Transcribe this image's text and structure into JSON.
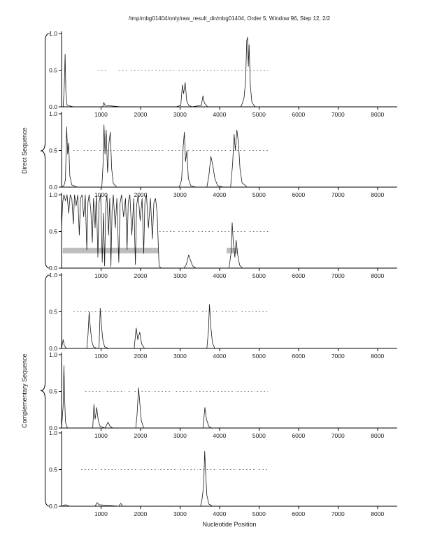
{
  "chart_data": {
    "type": "line",
    "title": "/tmp/mbg01404/only/raw_result_dir/mbg01404, Order 5, Window 96, Step 12, 2/2",
    "xlabel": "Nucleotide Position",
    "group_labels": {
      "direct": "Direct Sequence",
      "complementary": "Complementary Sequence"
    },
    "xlim": [
      0,
      8500
    ],
    "ylim": [
      0,
      1
    ],
    "x_ticks": [
      1000,
      2000,
      3000,
      4000,
      5000,
      6000,
      7000,
      8000
    ],
    "y_ticks": [
      0,
      0.5,
      1
    ],
    "colors": {
      "curve": "#1a1a1a",
      "marker": "#6e6e6e",
      "shade": "#bdbdbd",
      "axis": "#000000"
    },
    "panels": [
      {
        "group": "Direct Sequence",
        "frame": 1,
        "curve": [
          [
            0,
            0
          ],
          [
            40,
            0
          ],
          [
            70,
            0.3
          ],
          [
            90,
            0.72
          ],
          [
            110,
            0.2
          ],
          [
            140,
            0.02
          ],
          [
            300,
            0
          ],
          [
            1040,
            0
          ],
          [
            1070,
            0.06
          ],
          [
            1100,
            0.02
          ],
          [
            1500,
            0
          ],
          [
            2900,
            0
          ],
          [
            3020,
            0.02
          ],
          [
            3060,
            0.3
          ],
          [
            3090,
            0.18
          ],
          [
            3130,
            0.33
          ],
          [
            3170,
            0.08
          ],
          [
            3220,
            0.02
          ],
          [
            3300,
            0
          ],
          [
            3540,
            0.02
          ],
          [
            3580,
            0.15
          ],
          [
            3620,
            0.05
          ],
          [
            3700,
            0
          ],
          [
            4540,
            0
          ],
          [
            4580,
            0.05
          ],
          [
            4620,
            0.12
          ],
          [
            4660,
            0.35
          ],
          [
            4690,
            0.9
          ],
          [
            4710,
            0.95
          ],
          [
            4730,
            0.55
          ],
          [
            4750,
            0.85
          ],
          [
            4780,
            0.3
          ],
          [
            4820,
            0.06
          ],
          [
            4900,
            0
          ],
          [
            8500,
            0
          ]
        ],
        "orf_markers": [
          [
            920,
            1140
          ],
          [
            1450,
            1700
          ],
          [
            1750,
            2320
          ],
          [
            2380,
            2900
          ],
          [
            2960,
            3530
          ],
          [
            3590,
            3980
          ],
          [
            4040,
            4320
          ],
          [
            4380,
            4620
          ],
          [
            4680,
            5230
          ]
        ],
        "shade_bars": []
      },
      {
        "group": "Direct Sequence",
        "frame": 2,
        "curve": [
          [
            0,
            0
          ],
          [
            60,
            0.02
          ],
          [
            100,
            0.1
          ],
          [
            130,
            0.82
          ],
          [
            155,
            0.45
          ],
          [
            180,
            0.6
          ],
          [
            210,
            0.15
          ],
          [
            260,
            0.03
          ],
          [
            400,
            0
          ],
          [
            1020,
            0
          ],
          [
            1050,
            0.3
          ],
          [
            1075,
            0.85
          ],
          [
            1100,
            0.45
          ],
          [
            1130,
            0.78
          ],
          [
            1165,
            0.2
          ],
          [
            1200,
            0.6
          ],
          [
            1235,
            0.75
          ],
          [
            1270,
            0.25
          ],
          [
            1310,
            0.05
          ],
          [
            1400,
            0
          ],
          [
            2980,
            0
          ],
          [
            3040,
            0.1
          ],
          [
            3080,
            0.55
          ],
          [
            3110,
            0.75
          ],
          [
            3140,
            0.35
          ],
          [
            3175,
            0.5
          ],
          [
            3210,
            0.12
          ],
          [
            3270,
            0.02
          ],
          [
            3400,
            0
          ],
          [
            3680,
            0
          ],
          [
            3730,
            0.15
          ],
          [
            3780,
            0.42
          ],
          [
            3830,
            0.3
          ],
          [
            3880,
            0.12
          ],
          [
            3950,
            0.02
          ],
          [
            4100,
            0
          ],
          [
            4280,
            0
          ],
          [
            4330,
            0.3
          ],
          [
            4370,
            0.72
          ],
          [
            4400,
            0.5
          ],
          [
            4440,
            0.78
          ],
          [
            4480,
            0.6
          ],
          [
            4520,
            0.25
          ],
          [
            4570,
            0.06
          ],
          [
            4700,
            0
          ],
          [
            8500,
            0
          ]
        ],
        "orf_markers": [
          [
            300,
            420
          ],
          [
            560,
            900
          ],
          [
            960,
            1450
          ],
          [
            1500,
            2050
          ],
          [
            2100,
            2600
          ],
          [
            2700,
            3100
          ],
          [
            3200,
            3260
          ],
          [
            3320,
            3700
          ],
          [
            3780,
            4200
          ],
          [
            4260,
            4700
          ],
          [
            4750,
            5230
          ]
        ],
        "shade_bars": []
      },
      {
        "group": "Direct Sequence",
        "frame": 3,
        "curve": [
          [
            0,
            0.55
          ],
          [
            30,
            0.9
          ],
          [
            60,
            1
          ],
          [
            100,
            0.92
          ],
          [
            140,
            1
          ],
          [
            180,
            0.75
          ],
          [
            220,
            1
          ],
          [
            260,
            0.95
          ],
          [
            300,
            0.6
          ],
          [
            330,
            1
          ],
          [
            370,
            0.85
          ],
          [
            410,
            1
          ],
          [
            450,
            0.45
          ],
          [
            480,
            0.95
          ],
          [
            520,
            1
          ],
          [
            560,
            0.7
          ],
          [
            600,
            1
          ],
          [
            640,
            0.25
          ],
          [
            670,
            0.9
          ],
          [
            700,
            1
          ],
          [
            740,
            0.8
          ],
          [
            780,
            0.35
          ],
          [
            810,
            0.95
          ],
          [
            850,
            0.55
          ],
          [
            880,
            1
          ],
          [
            920,
            0.15
          ],
          [
            950,
            0.9
          ],
          [
            990,
            1
          ],
          [
            1030,
            0.08
          ],
          [
            1060,
            0.75
          ],
          [
            1090,
            0.03
          ],
          [
            1120,
            0.85
          ],
          [
            1150,
            1
          ],
          [
            1190,
            0.45
          ],
          [
            1220,
            0.95
          ],
          [
            1250,
            0.02
          ],
          [
            1280,
            0.8
          ],
          [
            1310,
            1
          ],
          [
            1360,
            0.55
          ],
          [
            1400,
            0.95
          ],
          [
            1450,
            0.08
          ],
          [
            1480,
            0.88
          ],
          [
            1520,
            1
          ],
          [
            1570,
            0.7
          ],
          [
            1620,
            0.95
          ],
          [
            1660,
            0.25
          ],
          [
            1690,
            0.9
          ],
          [
            1730,
            1
          ],
          [
            1780,
            0.45
          ],
          [
            1830,
            0.95
          ],
          [
            1870,
            0.05
          ],
          [
            1900,
            0.85
          ],
          [
            1940,
            1
          ],
          [
            1990,
            0.65
          ],
          [
            2040,
            0.95
          ],
          [
            2080,
            0.2
          ],
          [
            2110,
            0.9
          ],
          [
            2150,
            1
          ],
          [
            2200,
            0.55
          ],
          [
            2250,
            0.95
          ],
          [
            2300,
            0.4
          ],
          [
            2340,
            0.9
          ],
          [
            2380,
            0.95
          ],
          [
            2420,
            0.75
          ],
          [
            2450,
            0.3
          ],
          [
            2470,
            0.03
          ],
          [
            2520,
            0
          ],
          [
            3100,
            0
          ],
          [
            3160,
            0.05
          ],
          [
            3220,
            0.18
          ],
          [
            3270,
            0.1
          ],
          [
            3320,
            0.03
          ],
          [
            3400,
            0
          ],
          [
            4240,
            0
          ],
          [
            4290,
            0.2
          ],
          [
            4320,
            0.62
          ],
          [
            4350,
            0.35
          ],
          [
            4390,
            0.15
          ],
          [
            4420,
            0.38
          ],
          [
            4460,
            0.18
          ],
          [
            4510,
            0.04
          ],
          [
            4580,
            0
          ],
          [
            8500,
            0
          ]
        ],
        "orf_markers": [
          [
            2480,
            2900
          ],
          [
            2960,
            3400
          ],
          [
            3460,
            3900
          ],
          [
            3950,
            4300
          ],
          [
            4360,
            4700
          ],
          [
            4760,
            5230
          ]
        ],
        "shade_bars": [
          {
            "x1": 30,
            "x2": 2450,
            "y": 0.24
          },
          {
            "x1": 4180,
            "x2": 4460,
            "y": 0.24
          }
        ]
      },
      {
        "group": "Complementary Sequence",
        "frame": 1,
        "curve": [
          [
            0,
            0
          ],
          [
            40,
            0.12
          ],
          [
            70,
            0.04
          ],
          [
            120,
            0
          ],
          [
            640,
            0
          ],
          [
            670,
            0.18
          ],
          [
            700,
            0.5
          ],
          [
            730,
            0.28
          ],
          [
            765,
            0.1
          ],
          [
            810,
            0.02
          ],
          [
            900,
            0
          ],
          [
            950,
            0
          ],
          [
            980,
            0.55
          ],
          [
            1010,
            0.32
          ],
          [
            1045,
            0.12
          ],
          [
            1090,
            0.02
          ],
          [
            1200,
            0
          ],
          [
            1840,
            0
          ],
          [
            1890,
            0.28
          ],
          [
            1930,
            0.12
          ],
          [
            1980,
            0.22
          ],
          [
            2030,
            0.06
          ],
          [
            2100,
            0
          ],
          [
            3680,
            0
          ],
          [
            3720,
            0.25
          ],
          [
            3745,
            0.6
          ],
          [
            3775,
            0.32
          ],
          [
            3820,
            0.08
          ],
          [
            3880,
            0
          ],
          [
            8500,
            0
          ]
        ],
        "orf_markers": [
          [
            300,
            520
          ],
          [
            580,
            950
          ],
          [
            1010,
            1450
          ],
          [
            1500,
            1980
          ],
          [
            2040,
            2500
          ],
          [
            2560,
            3000
          ],
          [
            3060,
            3500
          ],
          [
            3560,
            4000
          ],
          [
            4060,
            4500
          ],
          [
            4560,
            5230
          ]
        ],
        "shade_bars": []
      },
      {
        "group": "Complementary Sequence",
        "frame": 2,
        "curve": [
          [
            0,
            0
          ],
          [
            40,
            0.3
          ],
          [
            60,
            0.85
          ],
          [
            80,
            0.4
          ],
          [
            100,
            0.08
          ],
          [
            150,
            0
          ],
          [
            790,
            0
          ],
          [
            820,
            0.32
          ],
          [
            850,
            0.12
          ],
          [
            890,
            0.28
          ],
          [
            930,
            0.1
          ],
          [
            980,
            0.02
          ],
          [
            1100,
            0
          ],
          [
            1180,
            0.08
          ],
          [
            1230,
            0.02
          ],
          [
            1300,
            0
          ],
          [
            1880,
            0
          ],
          [
            1915,
            0.2
          ],
          [
            1950,
            0.55
          ],
          [
            1985,
            0.32
          ],
          [
            2020,
            0.1
          ],
          [
            2080,
            0
          ],
          [
            3580,
            0
          ],
          [
            3630,
            0.28
          ],
          [
            3670,
            0.12
          ],
          [
            3730,
            0.02
          ],
          [
            3800,
            0
          ],
          [
            8500,
            0
          ]
        ],
        "orf_markers": [
          [
            600,
            1050
          ],
          [
            1150,
            1600
          ],
          [
            1700,
            1780
          ],
          [
            1850,
            2300
          ],
          [
            2360,
            2800
          ],
          [
            2900,
            3350
          ],
          [
            3400,
            3900
          ],
          [
            3950,
            4400
          ],
          [
            4450,
            4900
          ],
          [
            4950,
            5230
          ]
        ],
        "shade_bars": []
      },
      {
        "group": "Complementary Sequence",
        "frame": 3,
        "curve": [
          [
            0,
            0
          ],
          [
            100,
            0.02
          ],
          [
            200,
            0
          ],
          [
            850,
            0
          ],
          [
            900,
            0.05
          ],
          [
            950,
            0.02
          ],
          [
            1450,
            0
          ],
          [
            1500,
            0.04
          ],
          [
            1550,
            0
          ],
          [
            3520,
            0
          ],
          [
            3560,
            0.1
          ],
          [
            3600,
            0.3
          ],
          [
            3625,
            0.75
          ],
          [
            3650,
            0.45
          ],
          [
            3680,
            0.15
          ],
          [
            3730,
            0.03
          ],
          [
            3820,
            0
          ],
          [
            8500,
            0
          ]
        ],
        "orf_markers": [
          [
            500,
            950
          ],
          [
            1000,
            1450
          ],
          [
            1500,
            1950
          ],
          [
            2000,
            2450
          ],
          [
            2500,
            2950
          ],
          [
            3000,
            3450
          ],
          [
            3500,
            3950
          ],
          [
            4000,
            4450
          ],
          [
            4500,
            4950
          ],
          [
            5000,
            5230
          ]
        ],
        "shade_bars": []
      }
    ]
  }
}
